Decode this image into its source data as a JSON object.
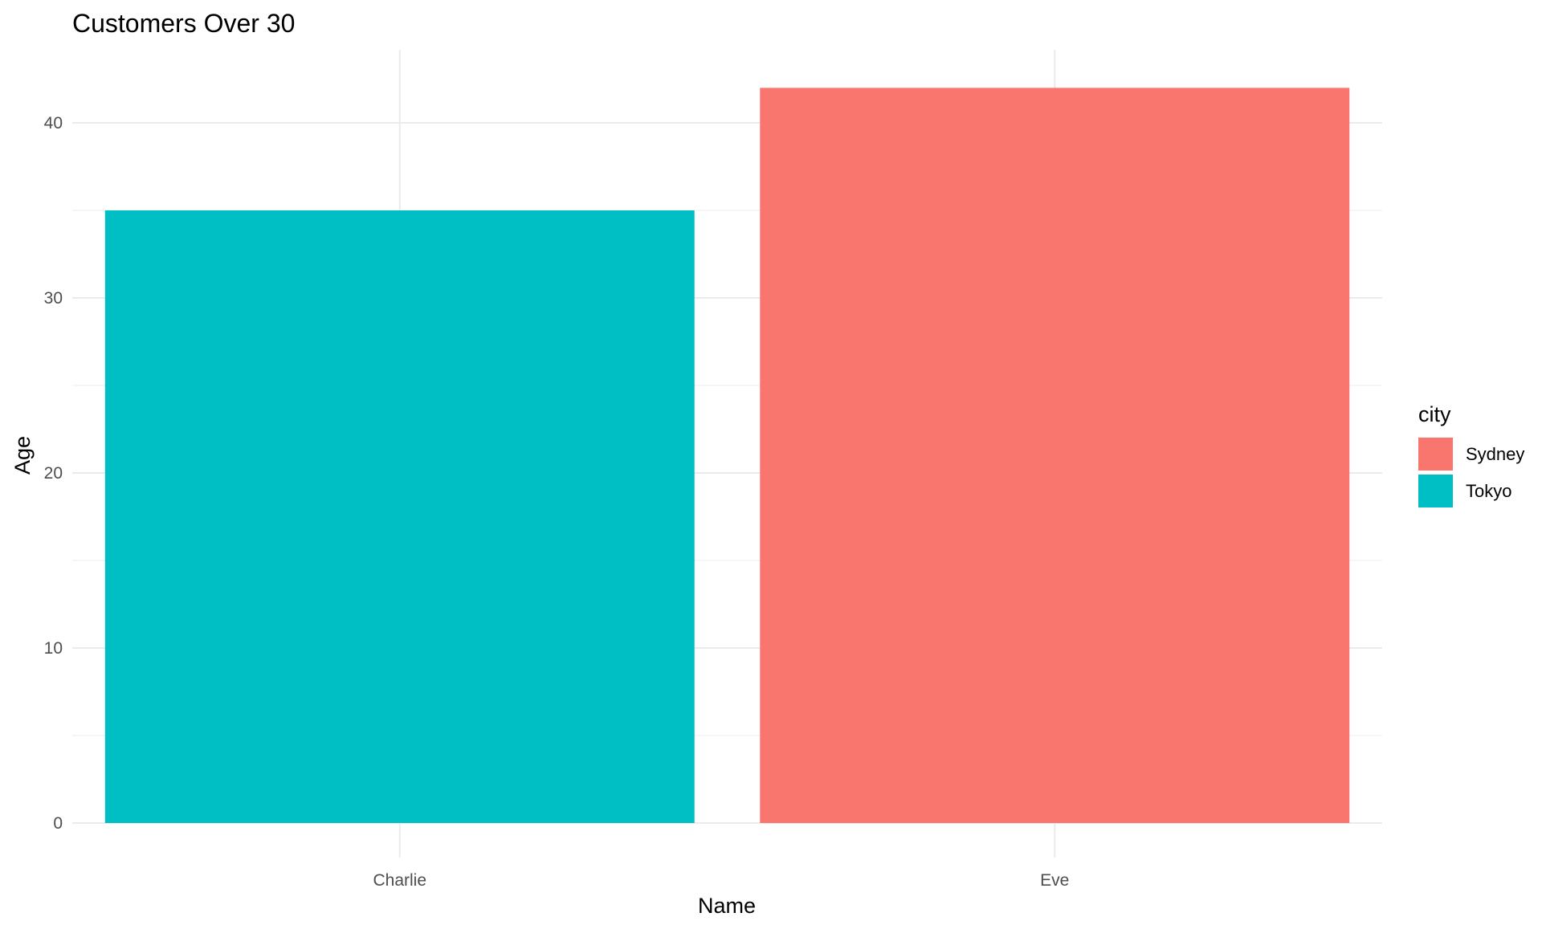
{
  "chart_data": {
    "type": "bar",
    "title": "Customers Over 30",
    "xlabel": "Name",
    "ylabel": "Age",
    "categories": [
      "Charlie",
      "Eve"
    ],
    "values": [
      35,
      42
    ],
    "fill_groups": [
      "Tokyo",
      "Sydney"
    ],
    "ylim": [
      0,
      44.1
    ],
    "yticks": [
      0,
      10,
      20,
      30,
      40
    ],
    "grid": true,
    "legend": {
      "title": "city",
      "position": "right",
      "entries": [
        {
          "label": "Sydney",
          "color": "#F8766D"
        },
        {
          "label": "Tokyo",
          "color": "#00BFC4"
        }
      ]
    }
  }
}
